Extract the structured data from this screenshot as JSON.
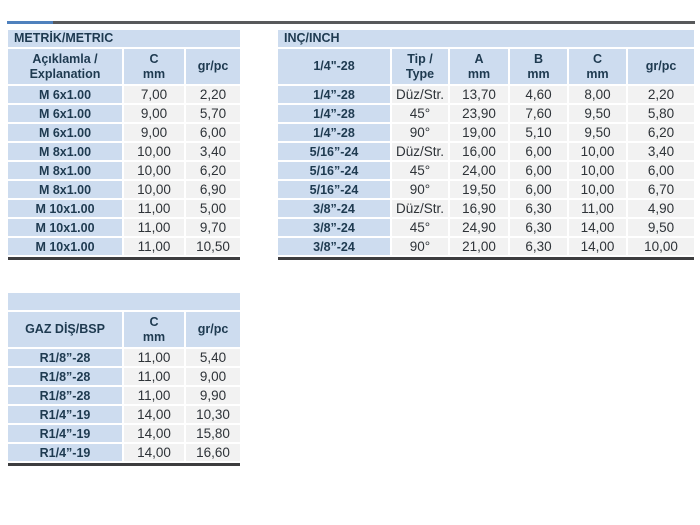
{
  "page": {
    "kind": "product-specification-tables",
    "colors": {
      "band_blue": "#cddcef",
      "accent_blue": "#4f81bd",
      "divider_gray": "#58595b",
      "value_cell_gray": "#f2f2f2",
      "table_border_dark": "#3d3d3f",
      "text_navy": "#1e3a50"
    }
  },
  "tables": {
    "metric": {
      "title": "METRİK/METRIC",
      "headers": [
        "Açıklamla /\nExplanation",
        "C\nmm",
        "gr/pc"
      ],
      "rows": [
        [
          "M 6x1.00",
          "7,00",
          "2,20"
        ],
        [
          "M 6x1.00",
          "9,00",
          "5,70"
        ],
        [
          "M 6x1.00",
          "9,00",
          "6,00"
        ],
        [
          "M 8x1.00",
          "10,00",
          "3,40"
        ],
        [
          "M 8x1.00",
          "10,00",
          "6,20"
        ],
        [
          "M 8x1.00",
          "10,00",
          "6,90"
        ],
        [
          "M 10x1.00",
          "11,00",
          "5,00"
        ],
        [
          "M 10x1.00",
          "11,00",
          "9,70"
        ],
        [
          "M 10x1.00",
          "11,00",
          "10,50"
        ]
      ]
    },
    "inch": {
      "title": "INÇ/INCH",
      "headers": [
        "1/4\"-28",
        "Tip /\nType",
        "A\nmm",
        "B\nmm",
        "C\nmm",
        "gr/pc"
      ],
      "rows": [
        [
          "1/4”-28",
          "Düz/Str.",
          "13,70",
          "4,60",
          "8,00",
          "2,20"
        ],
        [
          "1/4”-28",
          "45°",
          "23,90",
          "7,60",
          "9,50",
          "5,80"
        ],
        [
          "1/4”-28",
          "90°",
          "19,00",
          "5,10",
          "9,50",
          "6,20"
        ],
        [
          "5/16”-24",
          "Düz/Str.",
          "16,00",
          "6,00",
          "10,00",
          "3,40"
        ],
        [
          "5/16”-24",
          "45°",
          "24,00",
          "6,00",
          "10,00",
          "6,00"
        ],
        [
          "5/16”-24",
          "90°",
          "19,50",
          "6,00",
          "10,00",
          "6,70"
        ],
        [
          "3/8”-24",
          "Düz/Str.",
          "16,90",
          "6,30",
          "11,00",
          "4,90"
        ],
        [
          "3/8”-24",
          "45°",
          "24,90",
          "6,30",
          "14,00",
          "9,50"
        ],
        [
          "3/8”-24",
          "90°",
          "21,00",
          "6,30",
          "14,00",
          "10,00"
        ]
      ]
    },
    "bsp": {
      "title": "",
      "headers": [
        "GAZ DİŞ/BSP",
        "C\nmm",
        "gr/pc"
      ],
      "rows": [
        [
          "R1/8”-28",
          "11,00",
          "5,40"
        ],
        [
          "R1/8”-28",
          "11,00",
          "9,00"
        ],
        [
          "R1/8”-28",
          "11,00",
          "9,90"
        ],
        [
          "R1/4”-19",
          "14,00",
          "10,30"
        ],
        [
          "R1/4”-19",
          "14,00",
          "15,80"
        ],
        [
          "R1/4”-19",
          "14,00",
          "16,60"
        ]
      ]
    }
  }
}
